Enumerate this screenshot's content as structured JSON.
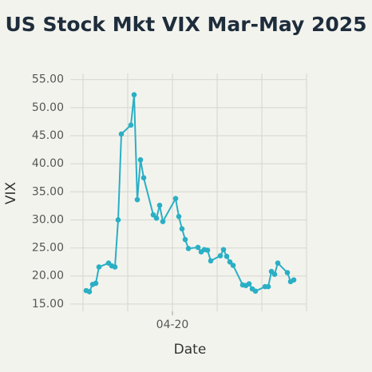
{
  "chart_data": {
    "type": "line",
    "title": "US Stock Mkt VIX Mar-May 2025",
    "x_label": "Date",
    "y_label": "VIX",
    "x": [
      "03-24",
      "03-25",
      "03-26",
      "03-27",
      "03-28",
      "03-31",
      "04-01",
      "04-02",
      "04-03",
      "04-04",
      "04-07",
      "04-08",
      "04-09",
      "04-10",
      "04-11",
      "04-14",
      "04-15",
      "04-16",
      "04-17",
      "04-21",
      "04-22",
      "04-23",
      "04-24",
      "04-25",
      "04-28",
      "04-29",
      "04-30",
      "05-01",
      "05-02",
      "05-05",
      "05-06",
      "05-07",
      "05-08",
      "05-09",
      "05-12",
      "05-13",
      "05-14",
      "05-15",
      "05-16",
      "05-19",
      "05-20",
      "05-21",
      "05-22",
      "05-23",
      "05-26",
      "05-27",
      "05-28"
    ],
    "series": [
      {
        "name": "VIX",
        "color": "#2aafc4",
        "values": [
          17.4,
          17.2,
          18.5,
          18.7,
          21.6,
          22.3,
          21.8,
          21.6,
          30.0,
          45.3,
          46.9,
          52.3,
          33.6,
          40.7,
          37.5,
          30.9,
          30.3,
          32.6,
          29.7,
          33.8,
          30.6,
          28.4,
          26.5,
          24.9,
          25.1,
          24.3,
          24.7,
          24.6,
          22.7,
          23.6,
          24.7,
          23.5,
          22.5,
          21.9,
          18.4,
          18.3,
          18.6,
          17.7,
          17.3,
          18.1,
          18.1,
          20.8,
          20.3,
          22.3,
          20.6,
          19.0,
          19.3
        ]
      }
    ],
    "xlim": [
      "03-19",
      "06-01"
    ],
    "xticks": [
      "04-20"
    ],
    "xgrid": [
      "03-23",
      "04-06",
      "04-20",
      "05-04",
      "05-18",
      "06-01"
    ],
    "ylim": [
      13.7,
      56.1
    ],
    "yticks": [
      {
        "value": 15,
        "label": "15.00"
      },
      {
        "value": 20,
        "label": "20.00"
      },
      {
        "value": 25,
        "label": "25.00"
      },
      {
        "value": 30,
        "label": "30.00"
      },
      {
        "value": 35,
        "label": "35.00"
      },
      {
        "value": 40,
        "label": "40.00"
      },
      {
        "value": 45,
        "label": "45.00"
      },
      {
        "value": 50,
        "label": "50.00"
      },
      {
        "value": 55,
        "label": "55.00"
      }
    ],
    "grid": true
  }
}
